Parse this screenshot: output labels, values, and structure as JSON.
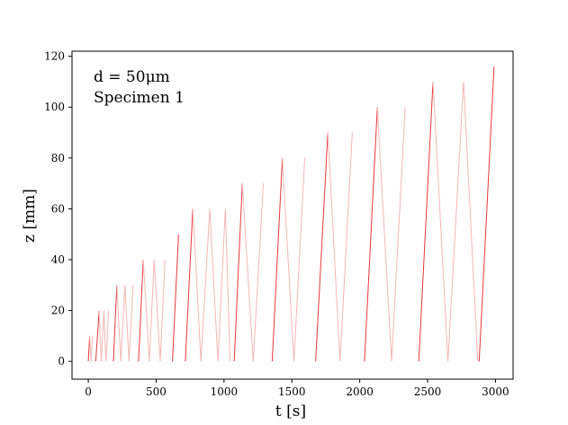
{
  "chart_data": {
    "type": "line",
    "title": "",
    "xlabel": "t [s]",
    "ylabel": "z [mm]",
    "xlim": [
      -120,
      3130
    ],
    "ylim": [
      -7,
      122
    ],
    "xticks": [
      0,
      500,
      1000,
      1500,
      2000,
      2500,
      3000
    ],
    "yticks": [
      0,
      20,
      40,
      60,
      80,
      100,
      120
    ],
    "grid": false,
    "legend": "none",
    "annotations": [
      "d = 50μm",
      "Specimen 1"
    ],
    "colors": {
      "ascending": "#e8373b",
      "descending": "#f3b6b4",
      "axes": "#000000"
    },
    "series": [
      {
        "style": "ascending",
        "segments": [
          {
            "x": [
              0,
              10
            ],
            "y": [
              0,
              10
            ]
          },
          {
            "x": [
              55,
              80
            ],
            "y": [
              0,
              20
            ]
          },
          {
            "x": [
              185,
              210
            ],
            "y": [
              0,
              30
            ]
          },
          {
            "x": [
              370,
              405
            ],
            "y": [
              0,
              40
            ]
          },
          {
            "x": [
              620,
              665
            ],
            "y": [
              0,
              50
            ]
          },
          {
            "x": [
              715,
              770
            ],
            "y": [
              0,
              60
            ]
          },
          {
            "x": [
              1075,
              1135
            ],
            "y": [
              0,
              70
            ]
          },
          {
            "x": [
              1355,
              1430
            ],
            "y": [
              0,
              80
            ]
          },
          {
            "x": [
              1675,
              1765
            ],
            "y": [
              0,
              90
            ]
          },
          {
            "x": [
              2035,
              2130
            ],
            "y": [
              0,
              100
            ]
          },
          {
            "x": [
              2435,
              2540
            ],
            "y": [
              0,
              110
            ]
          },
          {
            "x": [
              2880,
              2990
            ],
            "y": [
              0,
              116
            ]
          }
        ]
      },
      {
        "style": "descending",
        "segments": [
          {
            "x": [
              10,
              20,
              30
            ],
            "y": [
              10,
              0,
              10
            ]
          },
          {
            "x": [
              80,
              95,
              115,
              130,
              150
            ],
            "y": [
              20,
              0,
              20,
              0,
              20
            ]
          },
          {
            "x": [
              210,
              240,
              270,
              300,
              330
            ],
            "y": [
              30,
              0,
              30,
              0,
              30
            ]
          },
          {
            "x": [
              405,
              450,
              485,
              530,
              565
            ],
            "y": [
              40,
              0,
              40,
              0,
              40
            ]
          },
          {
            "x": [
              770,
              830,
              895,
              955,
              1010,
              1045
            ],
            "y": [
              60,
              0,
              60,
              0,
              60,
              0
            ]
          },
          {
            "x": [
              1135,
              1215,
              1290
            ],
            "y": [
              70,
              0,
              70
            ]
          },
          {
            "x": [
              1430,
              1515,
              1595
            ],
            "y": [
              80,
              0,
              80
            ]
          },
          {
            "x": [
              1765,
              1855,
              1945
            ],
            "y": [
              90,
              0,
              90
            ]
          },
          {
            "x": [
              2130,
              2235,
              2335
            ],
            "y": [
              100,
              0,
              100
            ]
          },
          {
            "x": [
              2540,
              2650,
              2765,
              2870
            ],
            "y": [
              110,
              0,
              110,
              0
            ]
          }
        ]
      }
    ]
  }
}
